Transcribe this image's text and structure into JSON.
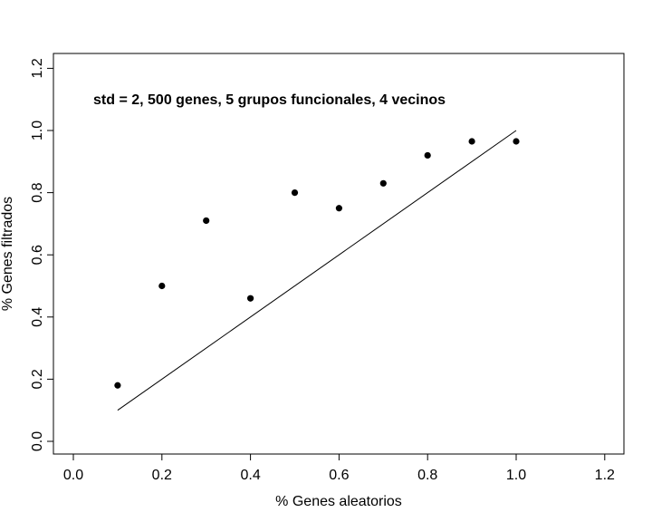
{
  "chart_data": {
    "type": "scatter",
    "title": "",
    "annotation": "std = 2, 500 genes, 5 grupos funcionales, 4 vecinos",
    "xlabel": "% Genes aleatorios",
    "ylabel": "% Genes filtrados",
    "xlim": [
      -0.05,
      1.25
    ],
    "ylim": [
      -0.05,
      1.25
    ],
    "x_ticks": [
      0.0,
      0.2,
      0.4,
      0.6,
      0.8,
      1.0,
      1.2
    ],
    "x_tick_labels": [
      "0.0",
      "0.2",
      "0.4",
      "0.6",
      "0.8",
      "1.0",
      "1.2"
    ],
    "y_ticks": [
      0.0,
      0.2,
      0.4,
      0.6,
      0.8,
      1.0,
      1.2
    ],
    "y_tick_labels": [
      "0.0",
      "0.2",
      "0.4",
      "0.6",
      "0.8",
      "1.0",
      "1.2"
    ],
    "grid": false,
    "points": {
      "x": [
        0.1,
        0.2,
        0.3,
        0.4,
        0.5,
        0.6,
        0.7,
        0.8,
        0.9,
        1.0
      ],
      "y": [
        0.18,
        0.5,
        0.71,
        0.46,
        0.8,
        0.75,
        0.83,
        0.92,
        0.965,
        0.965
      ]
    },
    "reference_line": {
      "x": [
        0.1,
        1.0
      ],
      "y": [
        0.1,
        1.0
      ]
    },
    "colors": {
      "points": "#000000",
      "line": "#000000",
      "axes": "#000000"
    }
  }
}
